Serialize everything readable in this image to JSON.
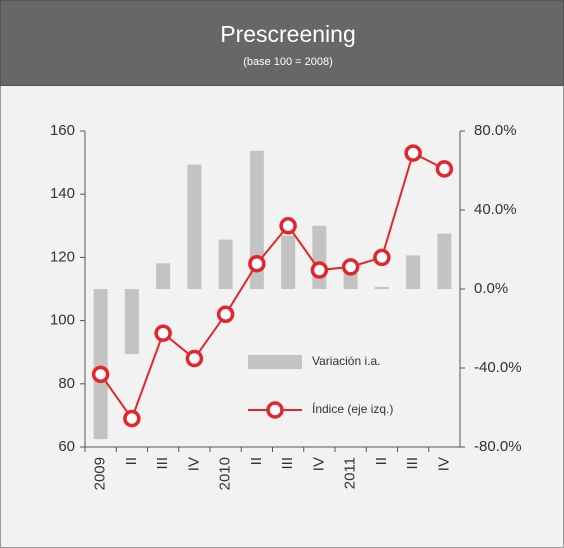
{
  "chart_data": {
    "type": "bar_line",
    "title": "Prescreening",
    "subtitle": "(base 100 = 2008)",
    "categories": [
      "2009",
      "II",
      "III",
      "IV",
      "2010",
      "II",
      "III",
      "IV",
      "2011",
      "II",
      "III",
      "IV"
    ],
    "series": [
      {
        "name": "Variación i.a.",
        "type": "bar",
        "axis": "y2",
        "color": "#c3c3c3",
        "values": [
          -76,
          -33,
          13,
          63,
          25,
          70,
          27,
          32,
          8,
          1,
          17,
          28
        ]
      },
      {
        "name": "Índice (eje izq.)",
        "type": "line",
        "axis": "y",
        "color": "#e3262b",
        "values": [
          83,
          69,
          96,
          88,
          102,
          118,
          130,
          116,
          117,
          120,
          153,
          148
        ]
      }
    ],
    "ylim": [
      60,
      160
    ],
    "yticks": [
      60,
      80,
      100,
      120,
      140,
      160
    ],
    "y2lim": [
      -80,
      80
    ],
    "y2ticks": [
      {
        "value": -80,
        "label": "-80.0%"
      },
      {
        "value": -40,
        "label": "-40.0%"
      },
      {
        "value": 0,
        "label": "0.0%"
      },
      {
        "value": 40,
        "label": "40.0%"
      },
      {
        "value": 80,
        "label": "80.0%"
      }
    ],
    "legend_position": "center"
  }
}
